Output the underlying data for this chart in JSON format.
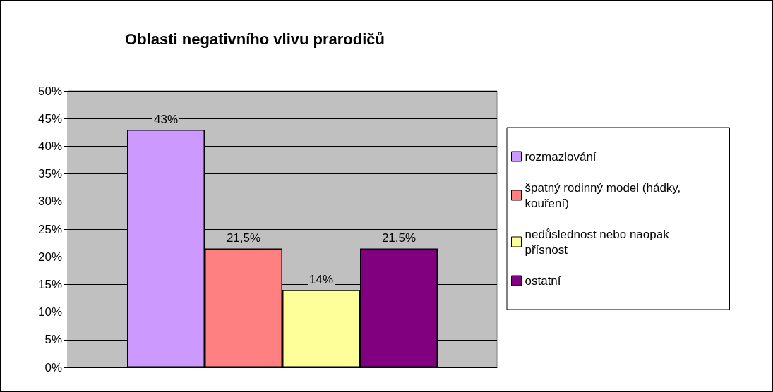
{
  "chart_data": {
    "type": "bar",
    "title": "Oblasti negativního vlivu prarodičů",
    "categories": [
      null
    ],
    "series": [
      {
        "name": "rozmazlování",
        "color": "#cc99ff",
        "values": [
          43
        ],
        "value_labels": [
          "43%"
        ]
      },
      {
        "name": "špatný rodinný model (hádky, kouření)",
        "color": "#ff8080",
        "values": [
          21.5
        ],
        "value_labels": [
          "21,5%"
        ]
      },
      {
        "name": "nedůslednost nebo naopak přísnost",
        "color": "#ffff99",
        "values": [
          14
        ],
        "value_labels": [
          "14%"
        ]
      },
      {
        "name": "ostatní",
        "color": "#800080",
        "values": [
          21.5
        ],
        "value_labels": [
          "21,5%"
        ]
      }
    ],
    "ylim": [
      0,
      50
    ],
    "yticks": [
      {
        "value": 0,
        "label": "0%"
      },
      {
        "value": 5,
        "label": "5%"
      },
      {
        "value": 10,
        "label": "10%"
      },
      {
        "value": 15,
        "label": "15%"
      },
      {
        "value": 20,
        "label": "20%"
      },
      {
        "value": 25,
        "label": "25%"
      },
      {
        "value": 30,
        "label": "30%"
      },
      {
        "value": 35,
        "label": "35%"
      },
      {
        "value": 40,
        "label": "40%"
      },
      {
        "value": 45,
        "label": "45%"
      },
      {
        "value": 50,
        "label": "50%"
      }
    ],
    "grid": "y",
    "legend": "right"
  }
}
